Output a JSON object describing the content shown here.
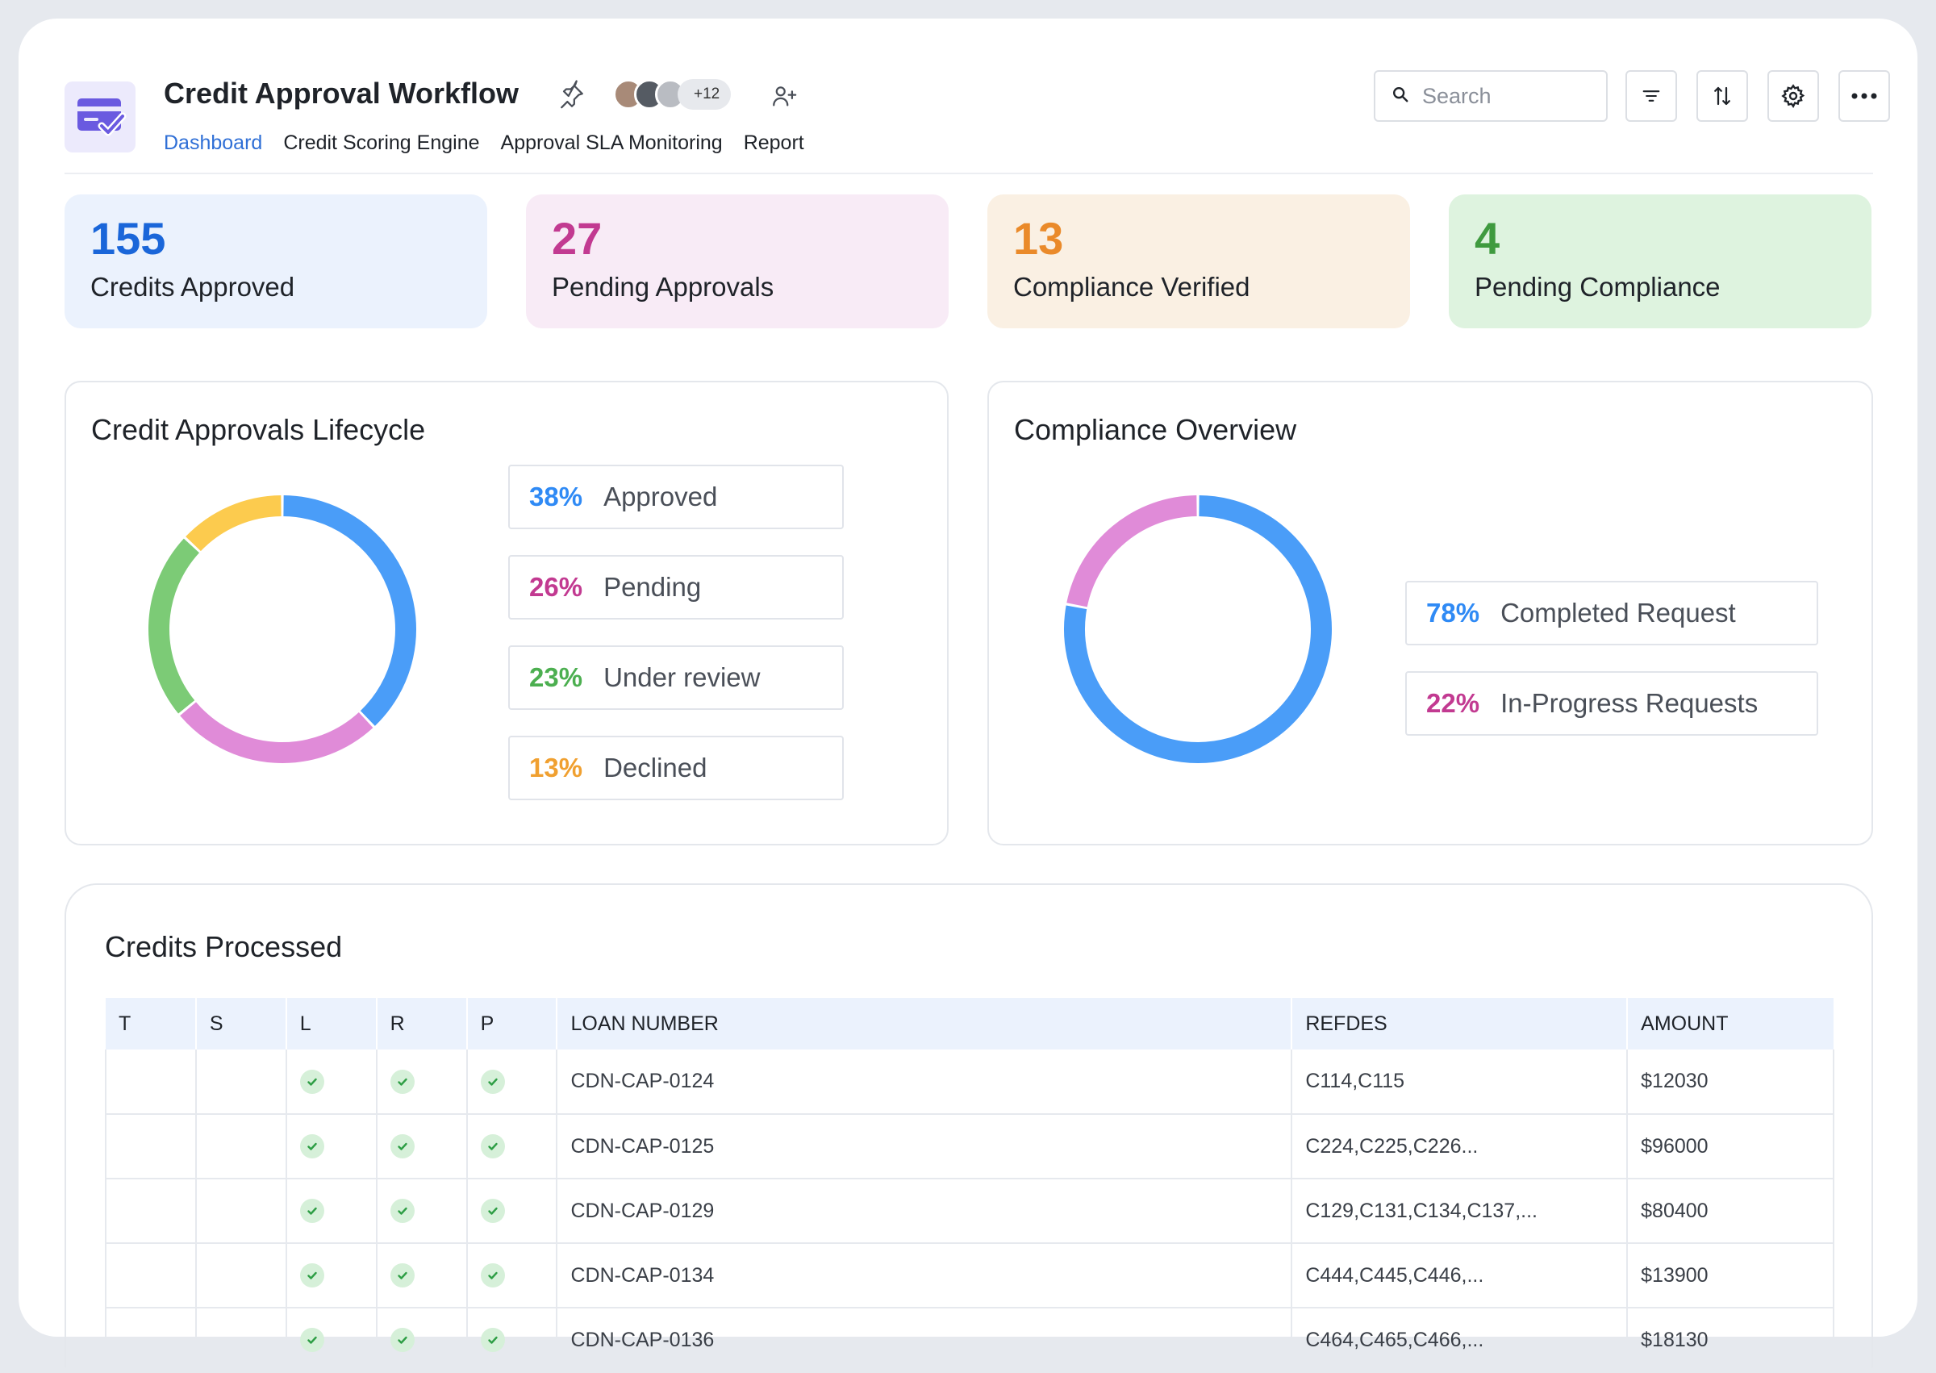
{
  "app": {
    "title": "Credit Approval Workflow",
    "avatar_count": "+12"
  },
  "nav": [
    "Dashboard",
    "Credit Scoring Engine",
    "Approval SLA Monitoring",
    "Report"
  ],
  "search": {
    "placeholder": "Search"
  },
  "kpis": [
    {
      "value": "155",
      "label": "Credits Approved",
      "color": "#1a66d9",
      "bg": "#ebf2fd"
    },
    {
      "value": "27",
      "label": "Pending Approvals",
      "color": "#c23a91",
      "bg": "#f8ebf6"
    },
    {
      "value": "13",
      "label": "Compliance Verified",
      "color": "#ea8a2a",
      "bg": "#faf0e3"
    },
    {
      "value": "4",
      "label": "Pending Compliance",
      "color": "#3f9a3f",
      "bg": "#def3df"
    }
  ],
  "lifecycle": {
    "title": "Credit Approvals Lifecycle",
    "legend": [
      {
        "pct": "38%",
        "label": "Approved",
        "color": "#2f8af5"
      },
      {
        "pct": "26%",
        "label": "Pending",
        "color": "#c23a91"
      },
      {
        "pct": "23%",
        "label": "Under review",
        "color": "#4caf50"
      },
      {
        "pct": "13%",
        "label": "Declined",
        "color": "#f0a030"
      }
    ]
  },
  "compliance": {
    "title": "Compliance Overview",
    "legend": [
      {
        "pct": "78%",
        "label": "Completed Request",
        "color": "#2f8af5"
      },
      {
        "pct": "22%",
        "label": "In-Progress Requests",
        "color": "#c23a91"
      }
    ]
  },
  "chart_data": [
    {
      "type": "pie",
      "title": "Credit Approvals Lifecycle",
      "categories": [
        "Approved",
        "Pending",
        "Under review",
        "Declined"
      ],
      "values": [
        38,
        26,
        23,
        13
      ],
      "colors": [
        "#4a9df8",
        "#e08bd8",
        "#7ccb76",
        "#fccb4e"
      ]
    },
    {
      "type": "pie",
      "title": "Compliance Overview",
      "categories": [
        "Completed Request",
        "In-Progress Requests"
      ],
      "values": [
        78,
        22
      ],
      "colors": [
        "#4a9df8",
        "#e08bd8"
      ]
    }
  ],
  "credits": {
    "title": "Credits Processed",
    "columns": [
      "T",
      "S",
      "L",
      "R",
      "P",
      "LOAN NUMBER",
      "REFDES",
      "AMOUNT"
    ],
    "rows": [
      {
        "loan": "CDN-CAP-0124",
        "refdes": "C114,C115",
        "amount": "$12030"
      },
      {
        "loan": "CDN-CAP-0125",
        "refdes": "C224,C225,C226...",
        "amount": "$96000"
      },
      {
        "loan": "CDN-CAP-0129",
        "refdes": "C129,C131,C134,C137,...",
        "amount": "$80400"
      },
      {
        "loan": "CDN-CAP-0134",
        "refdes": "C444,C445,C446,...",
        "amount": "$13900"
      },
      {
        "loan": "CDN-CAP-0136",
        "refdes": "C464,C465,C466,...",
        "amount": "$18130"
      }
    ]
  }
}
